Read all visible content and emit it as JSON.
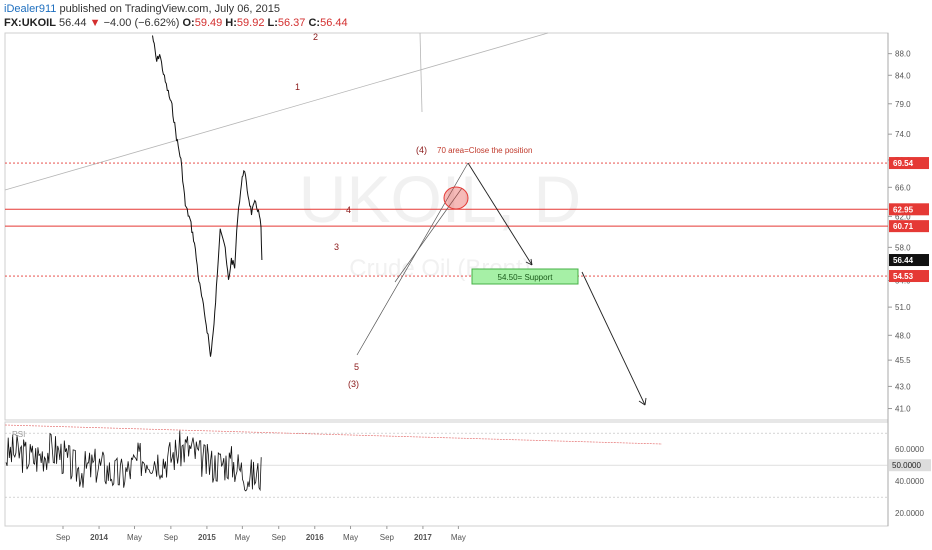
{
  "header": {
    "author": "iDealer911",
    "published_text": "published on TradingView.com, July 06, 2015",
    "symbol": "FX:UKOIL",
    "last": "56.44",
    "change": "−4.00 (−6.62%)",
    "o_label": "O:",
    "o_value": "59.49",
    "h_label": "H:",
    "h_value": "59.92",
    "l_label": "L:",
    "l_value": "56.37",
    "c_label": "C:",
    "c_value": "56.44"
  },
  "chart_data": [
    {
      "type": "candlestick",
      "scale": "log",
      "ylim": [
        40,
        92
      ],
      "y_ticks": [
        41.0,
        43.0,
        45.5,
        48.0,
        51.0,
        54.0,
        58.0,
        62.0,
        66.0,
        70.0,
        74.0,
        79.0,
        84.0,
        88.0
      ],
      "x_ticks": [
        "Sep",
        "2014",
        "May",
        "Sep",
        "2015",
        "May",
        "Sep",
        "2016",
        "May",
        "Sep",
        "2017",
        "May"
      ],
      "watermark": "UKOIL, D",
      "watermark_sub": "Crude Oil (Brent)",
      "price_path": [
        {
          "date": "2014-07-01",
          "value": 91.5
        },
        {
          "date": "2014-07-15",
          "value": 86.5
        },
        {
          "date": "2014-07-25",
          "value": 88.0
        },
        {
          "date": "2014-08-10",
          "value": 83.5
        },
        {
          "date": "2014-08-20",
          "value": 81.5
        },
        {
          "date": "2014-09-05",
          "value": 78.5
        },
        {
          "date": "2014-09-20",
          "value": 73.5
        },
        {
          "date": "2014-10-05",
          "value": 70.0
        },
        {
          "date": "2014-10-20",
          "value": 63.5
        },
        {
          "date": "2014-11-05",
          "value": 61.5
        },
        {
          "date": "2014-11-20",
          "value": 58.5
        },
        {
          "date": "2014-12-05",
          "value": 54.0
        },
        {
          "date": "2014-12-20",
          "value": 51.0
        },
        {
          "date": "2015-01-05",
          "value": 48.0
        },
        {
          "date": "2015-01-13",
          "value": 45.8
        },
        {
          "date": "2015-01-25",
          "value": 49.0
        },
        {
          "date": "2015-02-05",
          "value": 54.5
        },
        {
          "date": "2015-02-15",
          "value": 60.8
        },
        {
          "date": "2015-03-01",
          "value": 58.5
        },
        {
          "date": "2015-03-15",
          "value": 54.0
        },
        {
          "date": "2015-03-25",
          "value": 56.5
        },
        {
          "date": "2015-04-05",
          "value": 55.5
        },
        {
          "date": "2015-04-15",
          "value": 62.0
        },
        {
          "date": "2015-04-25",
          "value": 65.5
        },
        {
          "date": "2015-05-06",
          "value": 68.8
        },
        {
          "date": "2015-05-20",
          "value": 65.0
        },
        {
          "date": "2015-06-01",
          "value": 62.5
        },
        {
          "date": "2015-06-15",
          "value": 64.0
        },
        {
          "date": "2015-06-28",
          "value": 62.0
        },
        {
          "date": "2015-07-03",
          "value": 60.4
        },
        {
          "date": "2015-07-06",
          "value": 56.44
        }
      ],
      "price_labels": [
        {
          "value": "69.54",
          "level": 69.54,
          "color": "#e53935"
        },
        {
          "value": "62.95",
          "level": 62.95,
          "color": "#e53935"
        },
        {
          "value": "60.71",
          "level": 60.71,
          "color": "#e53935"
        },
        {
          "value": "56.44",
          "level": 56.44,
          "color": "#111111"
        },
        {
          "value": "54.53",
          "level": 54.53,
          "color": "#e53935"
        }
      ],
      "horizontal_lines": [
        69.54,
        62.95,
        60.71,
        54.53
      ],
      "annotations": {
        "wave_labels": [
          "2",
          "1",
          "4",
          "3",
          "5",
          "(3)",
          "(4)"
        ],
        "note": "70 area=Close the position",
        "support_box": "54.50= Support"
      }
    },
    {
      "type": "line",
      "name": "RSI",
      "ylim": [
        12,
        77
      ],
      "y_ticks": [
        "60.0000",
        "50.0000",
        "40.0000",
        "20.0000"
      ],
      "current_label": "50.0000",
      "levels": [
        70,
        30
      ]
    }
  ]
}
